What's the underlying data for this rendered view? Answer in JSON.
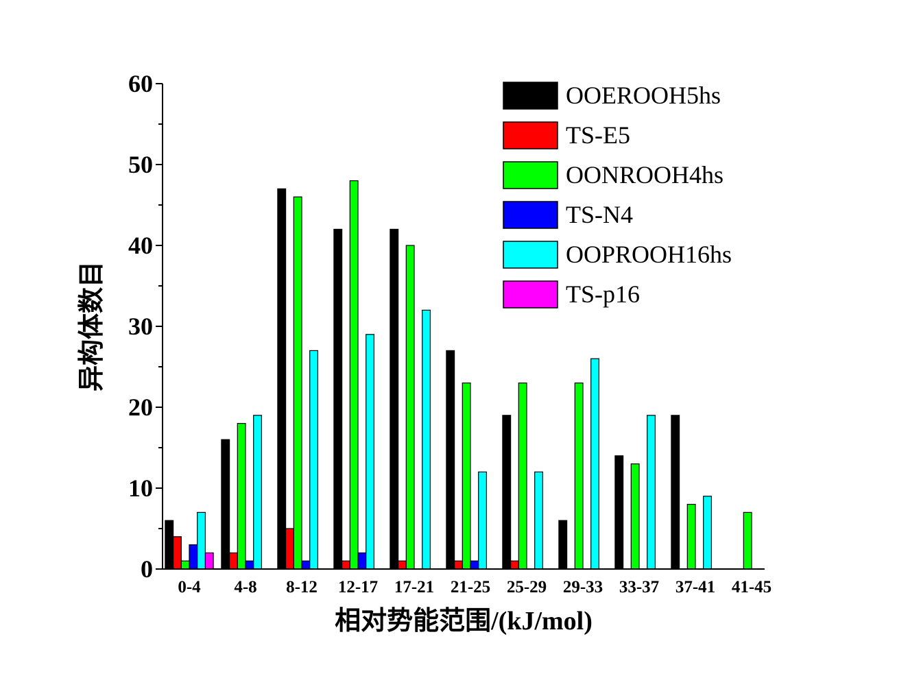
{
  "chart_data": {
    "type": "bar",
    "title": "",
    "xlabel": "相对势能范围/(kJ/mol)",
    "ylabel": "异构体数目",
    "ylim": [
      0,
      60
    ],
    "yticks": [
      "0",
      "10",
      "20",
      "30",
      "40",
      "50",
      "60"
    ],
    "grid": false,
    "legend_position": "top-right",
    "categories": [
      "0-4",
      "4-8",
      "8-12",
      "12-17",
      "17-21",
      "21-25",
      "25-29",
      "29-33",
      "33-37",
      "37-41",
      "41-45"
    ],
    "series": [
      {
        "name": "OOEROOH5hs",
        "color": "#000000",
        "values": [
          6,
          16,
          47,
          42,
          42,
          27,
          19,
          6,
          14,
          19,
          0
        ]
      },
      {
        "name": "TS-E5",
        "color": "#ff0000",
        "values": [
          4,
          2,
          5,
          1,
          1,
          1,
          1,
          0,
          0,
          0,
          0
        ]
      },
      {
        "name": "OONROOH4hs",
        "color": "#00ff00",
        "values": [
          1,
          18,
          46,
          48,
          40,
          23,
          23,
          23,
          13,
          8,
          7
        ]
      },
      {
        "name": "TS-N4",
        "color": "#0000ff",
        "values": [
          3,
          1,
          1,
          2,
          0,
          1,
          0,
          0,
          0,
          0,
          0
        ]
      },
      {
        "name": "OOPROOH16hs",
        "color": "#00ffff",
        "values": [
          7,
          19,
          27,
          29,
          32,
          12,
          12,
          26,
          19,
          9,
          0
        ]
      },
      {
        "name": "TS-p16",
        "color": "#ff00ff",
        "values": [
          2,
          0,
          0,
          0,
          0,
          0,
          0,
          0,
          0,
          0,
          0
        ]
      }
    ]
  }
}
